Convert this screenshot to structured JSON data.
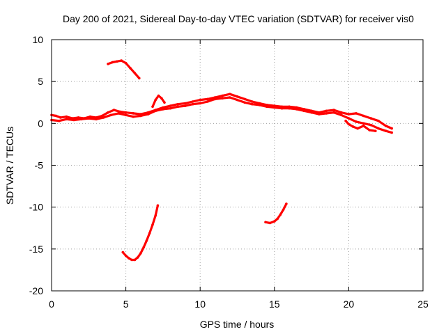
{
  "chart_data": {
    "type": "scatter",
    "title": "Day 200 of 2021, Sidereal Day-to-day VTEC variation (SDTVAR) for receiver vis0",
    "xlabel": "GPS time / hours",
    "ylabel": "SDTVAR / TECUs",
    "xlim": [
      0,
      25
    ],
    "ylim": [
      -20,
      10
    ],
    "xticks": [
      0,
      5,
      10,
      15,
      20,
      25
    ],
    "yticks": [
      -20,
      -15,
      -10,
      -5,
      0,
      5,
      10
    ],
    "xtick_labels": [
      "0",
      "5",
      "10",
      "15",
      "20",
      "25"
    ],
    "ytick_labels": [
      "-20",
      "-15",
      "-10",
      "-5",
      "0",
      "5",
      "10"
    ],
    "grid": true,
    "color": "#ff0000",
    "series": [
      {
        "name": "main-track-a",
        "x": [
          0,
          0.3,
          0.6,
          1.0,
          1.4,
          1.8,
          2.2,
          2.6,
          3.0,
          3.4,
          3.8,
          4.2,
          4.6,
          5.0,
          5.5,
          6.0,
          6.5,
          7.0,
          7.5,
          8.0,
          8.5,
          9.0,
          9.5,
          10.0,
          10.5,
          11.0,
          11.5,
          12.0,
          12.5,
          13.0,
          13.5,
          14.0,
          14.5,
          15.0,
          15.5,
          16.0,
          16.5,
          17.0,
          17.5,
          18.0,
          18.5,
          19.0,
          19.5,
          20.0,
          20.5,
          21.0,
          21.5,
          22.0,
          22.5,
          22.9
        ],
        "y": [
          1.0,
          0.9,
          0.7,
          0.8,
          0.6,
          0.7,
          0.6,
          0.8,
          0.7,
          0.9,
          1.3,
          1.6,
          1.4,
          1.3,
          1.2,
          1.1,
          1.3,
          1.6,
          1.9,
          2.1,
          2.3,
          2.4,
          2.6,
          2.8,
          2.9,
          3.1,
          3.3,
          3.5,
          3.2,
          2.9,
          2.6,
          2.4,
          2.2,
          2.1,
          2.0,
          2.0,
          1.9,
          1.7,
          1.5,
          1.3,
          1.5,
          1.6,
          1.3,
          1.1,
          1.2,
          0.9,
          0.6,
          0.3,
          -0.3,
          -0.6
        ]
      },
      {
        "name": "main-track-b",
        "x": [
          0,
          0.5,
          1.0,
          1.5,
          2.0,
          2.5,
          3.0,
          3.5,
          4.0,
          4.5,
          5.0,
          5.5,
          6.0,
          6.5,
          7.0,
          7.5,
          8.0,
          8.5,
          9.0,
          9.5,
          10.0,
          10.5,
          11.0,
          11.5,
          12.0,
          12.5,
          13.0,
          13.5,
          14.0,
          14.5,
          15.0,
          15.5,
          16.0,
          16.5,
          17.0,
          17.5,
          18.0,
          18.5,
          19.0,
          19.5,
          20.0,
          20.5,
          21.0,
          21.5,
          22.0,
          22.5,
          22.9
        ],
        "y": [
          0.4,
          0.3,
          0.5,
          0.4,
          0.5,
          0.6,
          0.5,
          0.7,
          1.0,
          1.2,
          1.0,
          0.8,
          0.9,
          1.1,
          1.5,
          1.7,
          1.8,
          2.0,
          2.1,
          2.3,
          2.4,
          2.6,
          2.9,
          3.0,
          3.1,
          2.8,
          2.5,
          2.3,
          2.2,
          2.0,
          1.9,
          1.8,
          1.8,
          1.7,
          1.5,
          1.3,
          1.1,
          1.2,
          1.3,
          1.0,
          0.6,
          0.2,
          0.0,
          -0.2,
          -0.6,
          -0.9,
          -1.1
        ]
      },
      {
        "name": "bump-near-7h",
        "x": [
          6.8,
          7.0,
          7.2,
          7.4,
          7.6
        ],
        "y": [
          2.0,
          2.8,
          3.3,
          3.0,
          2.5
        ]
      },
      {
        "name": "spread-near-21h",
        "x": [
          19.8,
          20.0,
          20.3,
          20.6,
          21.0,
          21.4,
          21.8
        ],
        "y": [
          0.3,
          -0.1,
          -0.4,
          -0.6,
          -0.3,
          -0.8,
          -0.9
        ]
      },
      {
        "name": "upper-arc",
        "x": [
          3.8,
          4.1,
          4.4,
          4.7,
          5.0,
          5.3,
          5.6,
          5.9
        ],
        "y": [
          7.1,
          7.3,
          7.4,
          7.5,
          7.2,
          6.6,
          6.0,
          5.4
        ]
      },
      {
        "name": "lower-arc-left",
        "x": [
          4.8,
          5.0,
          5.2,
          5.4,
          5.6,
          5.8,
          6.0,
          6.2,
          6.4,
          6.6,
          6.8,
          7.0,
          7.15
        ],
        "y": [
          -15.4,
          -15.8,
          -16.1,
          -16.3,
          -16.3,
          -16.0,
          -15.5,
          -14.8,
          -14.0,
          -13.1,
          -12.1,
          -11.0,
          -9.8
        ]
      },
      {
        "name": "lower-arc-right",
        "x": [
          14.4,
          14.7,
          15.0,
          15.2,
          15.4,
          15.6,
          15.8
        ],
        "y": [
          -11.8,
          -11.9,
          -11.7,
          -11.4,
          -10.9,
          -10.3,
          -9.6
        ]
      }
    ]
  }
}
